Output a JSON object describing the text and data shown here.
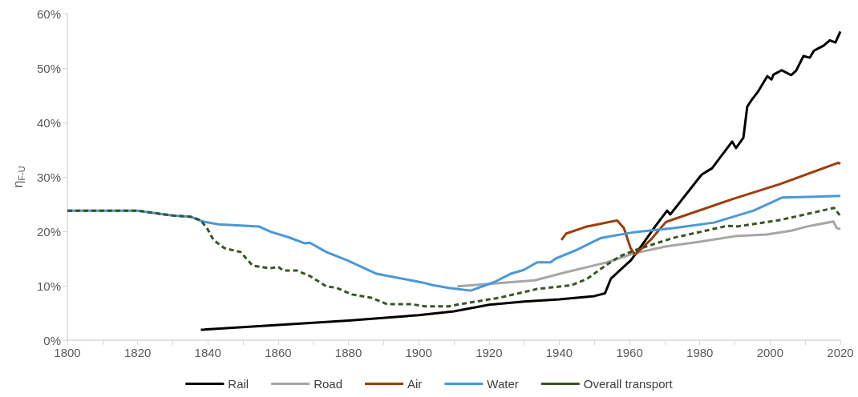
{
  "chart_data": {
    "type": "line",
    "ylabel": "η$_{F-U}$",
    "legend": "bottom",
    "marker": "none",
    "grid": false,
    "xlim": [
      1800,
      2020
    ],
    "xticks": [
      1800,
      {
        "value": 1810,
        "label": null
      },
      1820,
      {
        "value": 1830,
        "label": null
      },
      1840,
      {
        "value": 1850,
        "label": null
      },
      1860,
      {
        "value": 1870,
        "label": null
      },
      1880,
      {
        "value": 1890,
        "label": null
      },
      1900,
      {
        "value": 1910,
        "label": null
      },
      1920,
      {
        "value": 1930,
        "label": null
      },
      1940,
      {
        "value": 1950,
        "label": null
      },
      1960,
      {
        "value": 1970,
        "label": null
      },
      1980,
      {
        "value": 1990,
        "label": null
      },
      2000,
      {
        "value": 2010,
        "label": null
      },
      2020
    ],
    "ylim": [
      0,
      60
    ],
    "yticks": [
      {
        "value": 0,
        "label": "0%"
      },
      {
        "value": 10,
        "label": "10%"
      },
      {
        "value": 20,
        "label": "20%"
      },
      {
        "value": 30,
        "label": "30%"
      },
      {
        "value": 40,
        "label": "40%"
      },
      {
        "value": 50,
        "label": "50%"
      },
      {
        "value": 60,
        "label": "60%"
      }
    ],
    "series": [
      {
        "name": "Rail",
        "color": "#000000",
        "line_style": "solid",
        "x": [
          1838,
          1860,
          1880,
          1900,
          1910,
          1920,
          1930,
          1940,
          1950,
          1953,
          1954.7,
          1957.2,
          1960.4,
          1964,
          1967.3,
          1970.7,
          1971.6,
          1980.5,
          1983.5,
          1989.2,
          1990.3,
          1992.4,
          1993.5,
          1994.7,
          1996.5,
          1999.2,
          2000.4,
          2001,
          2003.3,
          2006,
          2007.4,
          2009.5,
          2011.3,
          2012.5,
          2015.2,
          2017,
          2018.6,
          2020
        ],
        "values": [
          1.9,
          2.8,
          3.6,
          4.6,
          5.3,
          6.5,
          7.1,
          7.5,
          8.1,
          8.6,
          11.3,
          12.8,
          14.7,
          17.9,
          20.9,
          23.8,
          23.1,
          30.4,
          31.6,
          36.5,
          35.3,
          37.2,
          42.9,
          44.1,
          45.6,
          48.5,
          47.9,
          48.8,
          49.6,
          48.7,
          49.5,
          52.2,
          51.9,
          53.2,
          54.1,
          55.1,
          54.7,
          56.7
        ]
      },
      {
        "name": "Road",
        "color": "#a6a6a6",
        "line_style": "solid",
        "x": [
          1911,
          1933,
          1942,
          1949.7,
          1953.6,
          1961,
          1970.2,
          1980,
          1990,
          1999,
          2006,
          2010.6,
          2018,
          2019,
          2020
        ],
        "values": [
          9.9,
          11.0,
          12.5,
          13.7,
          14.3,
          15.9,
          17.2,
          18.1,
          19.1,
          19.4,
          20.1,
          20.9,
          21.8,
          20.6,
          20.4
        ]
      },
      {
        "name": "Air",
        "color": "#9c3d0a",
        "line_style": "solid",
        "x": [
          1940.6,
          1942,
          1947.4,
          1956.5,
          1958.4,
          1960.3,
          1961.6,
          1966.4,
          1970.2,
          1970.7,
          1989.2,
          2002.9,
          2019.4,
          2020
        ],
        "values": [
          18.4,
          19.6,
          20.8,
          22.0,
          20.6,
          16.9,
          15.7,
          18.7,
          21.6,
          21.8,
          25.9,
          28.7,
          32.6,
          32.4
        ]
      },
      {
        "name": "Water",
        "color": "#4a98d8",
        "line_style": "solid",
        "x": [
          1800,
          1820,
          1826.5,
          1830,
          1835,
          1838.6,
          1843,
          1854.5,
          1857.9,
          1863,
          1867.5,
          1869,
          1873.7,
          1879.6,
          1888,
          1901,
          1904,
          1908.6,
          1914.8,
          1921.6,
          1926.2,
          1929.9,
          1933.7,
          1937.5,
          1939,
          1945,
          1949.7,
          1952,
          1961,
          1972.5,
          1984,
          1995.3,
          2003.4,
          2020
        ],
        "values": [
          23.8,
          23.8,
          23.2,
          22.9,
          22.7,
          21.8,
          21.3,
          20.9,
          19.9,
          18.9,
          17.8,
          17.9,
          16.2,
          14.7,
          12.2,
          10.6,
          10.1,
          9.6,
          9.1,
          10.7,
          12.2,
          12.9,
          14.3,
          14.3,
          15.0,
          16.6,
          18.1,
          18.8,
          19.8,
          20.6,
          21.6,
          23.8,
          26.2,
          26.5
        ]
      },
      {
        "name": "Overall transport",
        "color": "#375623",
        "line_style": "dashed",
        "x": [
          1800,
          1820,
          1826.5,
          1830,
          1835,
          1838,
          1840,
          1841.6,
          1844.7,
          1849.3,
          1852.7,
          1857.7,
          1860,
          1861.4,
          1865.3,
          1869,
          1873.7,
          1876.7,
          1881,
          1886.5,
          1888.8,
          1891,
          1898,
          1901.8,
          1908.6,
          1911.6,
          1923,
          1933.7,
          1943.5,
          1948,
          1952.7,
          1957.2,
          1961.8,
          1972.5,
          1987.8,
          1990.8,
          2003,
          2018.2,
          2020
        ],
        "values": [
          23.8,
          23.8,
          23.2,
          22.9,
          22.7,
          22.0,
          20.3,
          18.4,
          16.9,
          16.2,
          13.7,
          13.2,
          13.5,
          12.8,
          12.8,
          11.8,
          9.9,
          9.6,
          8.4,
          7.8,
          7.2,
          6.6,
          6.6,
          6.2,
          6.2,
          6.6,
          7.8,
          9.4,
          10.1,
          11.3,
          13.5,
          15.4,
          16.6,
          18.8,
          21.0,
          20.9,
          22.1,
          24.3,
          22.8
        ]
      }
    ]
  }
}
